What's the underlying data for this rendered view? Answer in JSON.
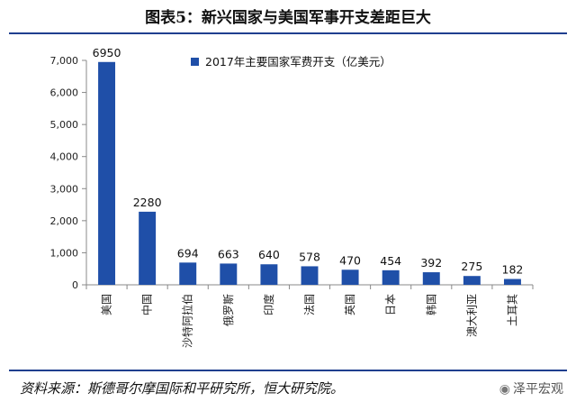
{
  "header": {
    "title": "图表5：新兴国家与美国军事开支差距巨大"
  },
  "footer": {
    "source": "资料来源：斯德哥尔摩国际和平研究所，恒大研究院。",
    "watermark": "泽平宏观"
  },
  "icons": {
    "watermark_icon": "wechat-icon"
  },
  "colors": {
    "bar": "#1f4fa8",
    "rule": "#1f3f8f"
  },
  "chart_data": {
    "type": "bar",
    "categories": [
      "美国",
      "中国",
      "沙特阿拉伯",
      "俄罗斯",
      "印度",
      "法国",
      "英国",
      "日本",
      "韩国",
      "澳大利亚",
      "土耳其"
    ],
    "series": [
      {
        "name": "2017年主要国家军费开支（亿美元）",
        "values": [
          6950,
          2280,
          694,
          663,
          640,
          578,
          470,
          454,
          392,
          275,
          182
        ]
      }
    ],
    "ylim": [
      0,
      7000
    ],
    "yticks": [
      "0",
      "1,000",
      "2,000",
      "3,000",
      "4,000",
      "5,000",
      "6,000",
      "7,000"
    ],
    "grid": false,
    "legend": "top-right",
    "xlabel": "",
    "ylabel": ""
  }
}
